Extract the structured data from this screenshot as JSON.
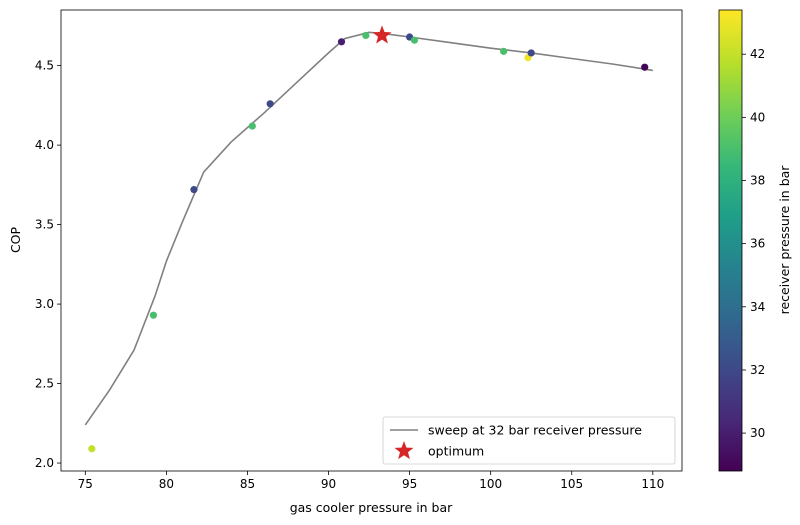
{
  "chart_data": {
    "type": "scatter",
    "xlabel": "gas cooler pressure in bar",
    "ylabel": "COP",
    "xlim": [
      73.5,
      111.8
    ],
    "ylim": [
      1.95,
      4.85
    ],
    "x_ticks": [
      "75",
      "80",
      "85",
      "90",
      "95",
      "100",
      "105",
      "110"
    ],
    "x_tick_values": [
      75,
      80,
      85,
      90,
      95,
      100,
      105,
      110
    ],
    "y_ticks": [
      "2.0",
      "2.5",
      "3.0",
      "3.5",
      "4.0",
      "4.5"
    ],
    "y_tick_values": [
      2.0,
      2.5,
      3.0,
      3.5,
      4.0,
      4.5
    ],
    "grid": false,
    "legend_placement": "lower-right",
    "sweep_line": {
      "name": "sweep at 32 bar receiver pressure",
      "color": "#808080",
      "x": [
        75.0,
        76.5,
        78.0,
        79.3,
        80.0,
        81.0,
        82.3,
        84.0,
        86.0,
        88.0,
        90.0,
        91.0,
        92.5,
        93.5,
        95.0,
        97.5,
        100.0,
        102.5,
        105.0,
        107.5,
        110.0
      ],
      "y": [
        2.24,
        2.46,
        2.71,
        3.05,
        3.27,
        3.52,
        3.83,
        4.02,
        4.2,
        4.39,
        4.58,
        4.67,
        4.71,
        4.7,
        4.68,
        4.645,
        4.61,
        4.58,
        4.545,
        4.51,
        4.47
      ]
    },
    "optimum": {
      "name": "optimum",
      "color": "#d62728",
      "x": 93.3,
      "y": 4.69
    },
    "points": {
      "x": [
        75.4,
        79.2,
        81.7,
        85.3,
        86.4,
        90.8,
        92.3,
        95.0,
        95.3,
        100.8,
        102.3,
        102.5,
        109.5
      ],
      "y": [
        2.09,
        2.93,
        3.72,
        4.12,
        4.26,
        4.65,
        4.69,
        4.68,
        4.66,
        4.59,
        4.55,
        4.58,
        4.49
      ],
      "receiver_pressure": [
        42.0,
        39.0,
        32.0,
        39.0,
        32.0,
        30.0,
        39.0,
        32.0,
        39.0,
        39.0,
        43.0,
        32.0,
        29.0
      ]
    },
    "colorbar": {
      "label": "receiver pressure in bar",
      "colormap": "viridis",
      "range": [
        28.8,
        43.4
      ],
      "ticks": [
        "30",
        "32",
        "34",
        "36",
        "38",
        "40",
        "42"
      ],
      "tick_values": [
        30,
        32,
        34,
        36,
        38,
        40,
        42
      ]
    }
  }
}
